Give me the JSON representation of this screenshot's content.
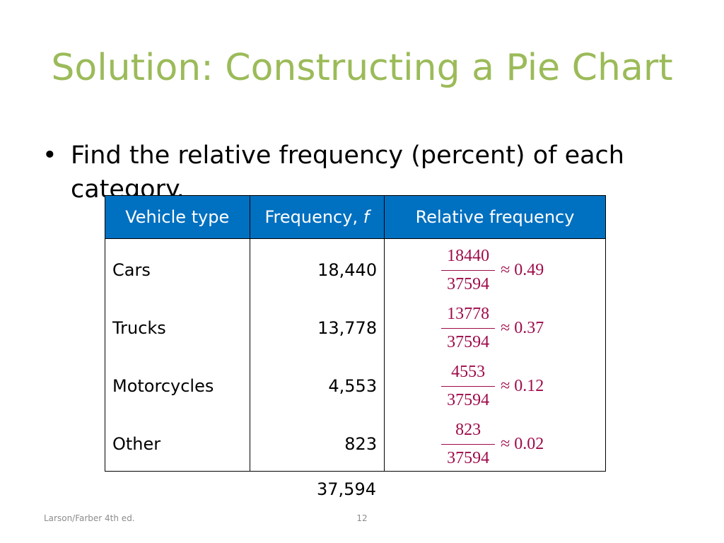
{
  "slide": {
    "title": "Solution: Constructing a Pie Chart",
    "bullet_symbol": "•",
    "bullet_text": "Find the relative frequency (percent) of each category."
  },
  "table": {
    "headers": {
      "type": "Vehicle type",
      "frequency": "Frequency, ",
      "frequency_var": "f",
      "relative": "Relative frequency"
    },
    "rows": [
      {
        "type": "Cars",
        "frequency": "18,440",
        "numerator": "18440",
        "denominator": "37594",
        "approx": "≈ 0.49"
      },
      {
        "type": "Trucks",
        "frequency": "13,778",
        "numerator": "13778",
        "denominator": "37594",
        "approx": "≈ 0.37"
      },
      {
        "type": "Motorcycles",
        "frequency": "4,553",
        "numerator": "4553",
        "denominator": "37594",
        "approx": "≈ 0.12"
      },
      {
        "type": "Other",
        "frequency": "823",
        "numerator": "823",
        "denominator": "37594",
        "approx": "≈ 0.02"
      }
    ],
    "total": "37,594"
  },
  "footer": {
    "source": "Larson/Farber 4th ed.",
    "page_number": "12"
  },
  "colors": {
    "title": "#9bbb59",
    "header_background": "#0070c0",
    "fraction_text": "#9e0b4a"
  }
}
